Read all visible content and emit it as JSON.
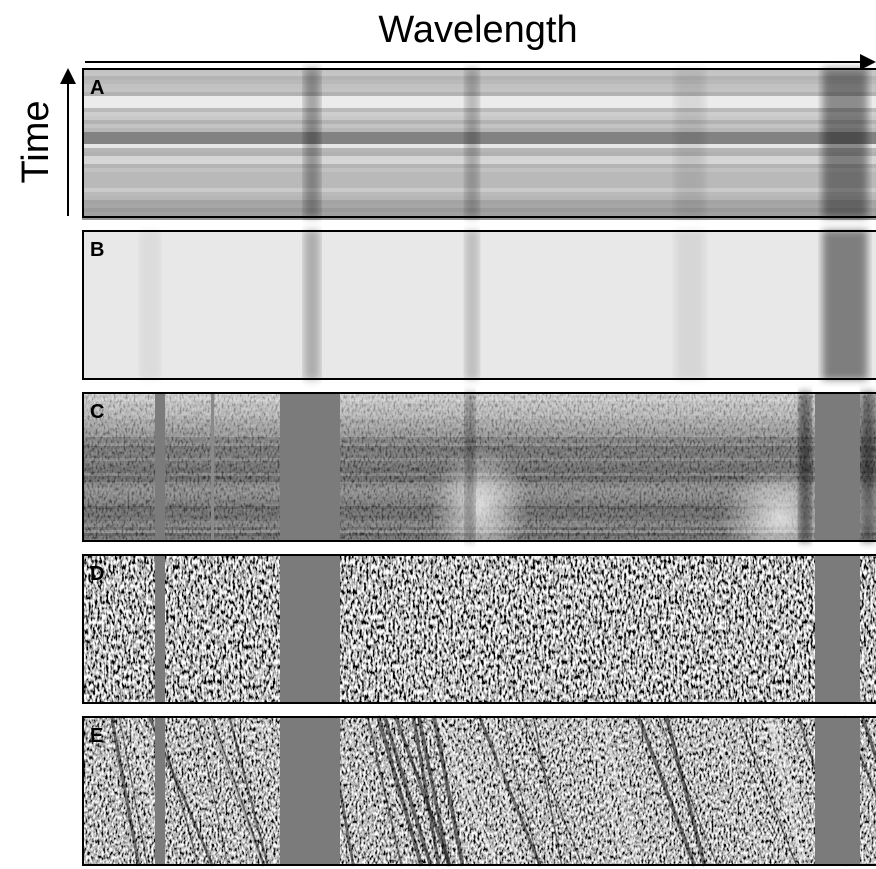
{
  "x_label": "Wavelength",
  "y_label": "Time",
  "panels": [
    {
      "label": "A"
    },
    {
      "label": "B"
    },
    {
      "label": "C"
    },
    {
      "label": "D"
    },
    {
      "label": "E"
    }
  ]
}
